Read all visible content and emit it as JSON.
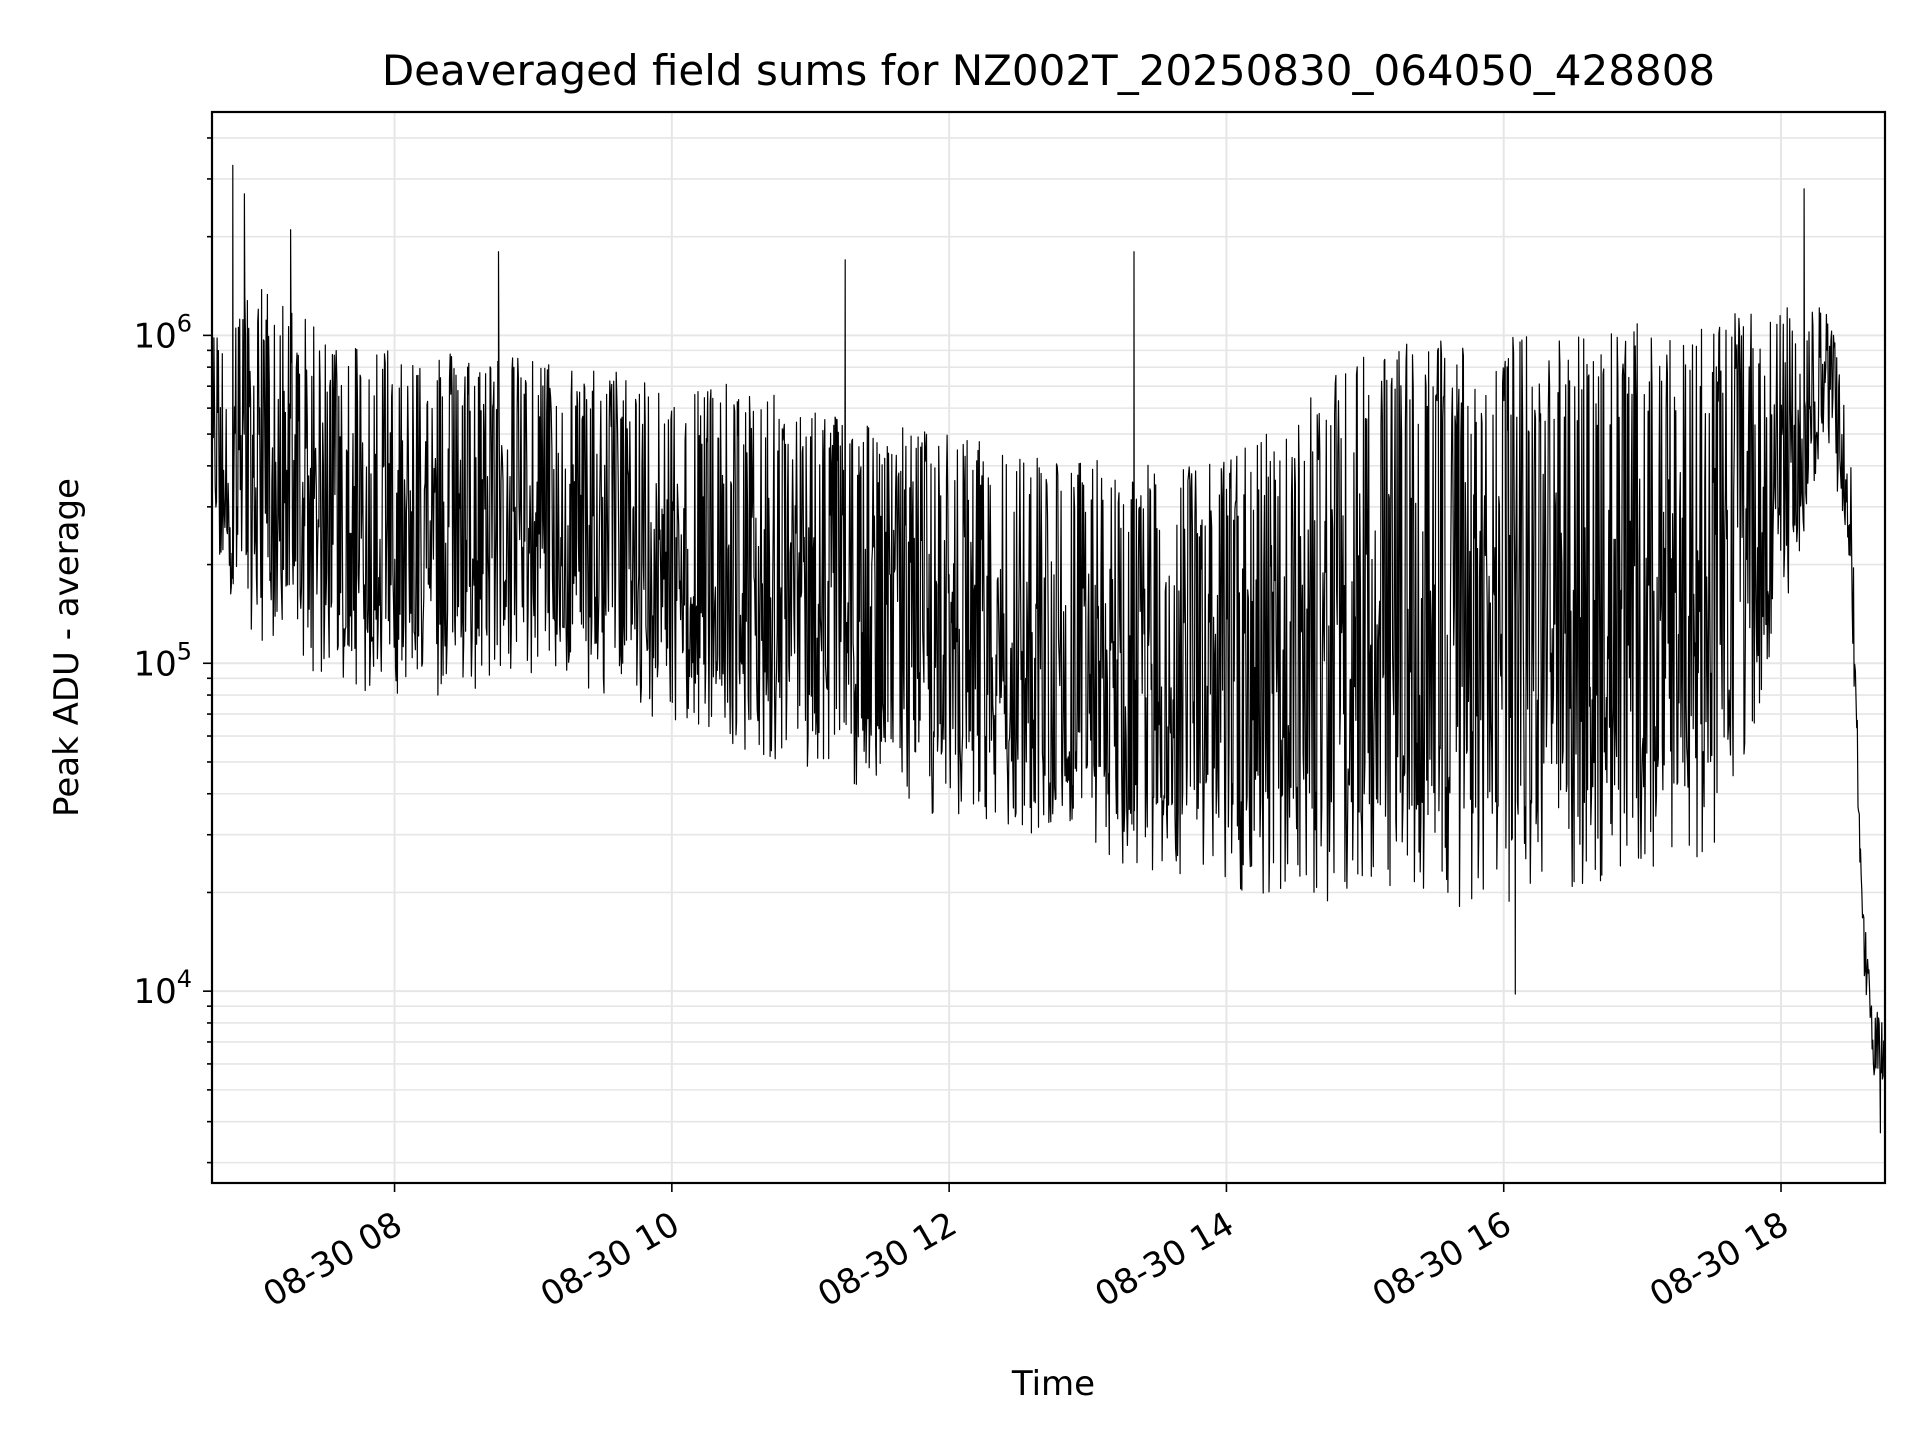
{
  "chart_data": {
    "type": "line",
    "title": "Deaveraged field sums for NZ002T_20250830_064050_428808",
    "xlabel": "Time",
    "ylabel": "Peak ADU - average",
    "y_scale": "log",
    "ylim": [
      2600,
      4800000
    ],
    "xlim": [
      "2025-08-30 06:41",
      "2025-08-30 18:45"
    ],
    "x_ticks": [
      {
        "value": "2025-08-30 08:00",
        "label": "08-30 08"
      },
      {
        "value": "2025-08-30 10:00",
        "label": "08-30 10"
      },
      {
        "value": "2025-08-30 12:00",
        "label": "08-30 12"
      },
      {
        "value": "2025-08-30 14:00",
        "label": "08-30 14"
      },
      {
        "value": "2025-08-30 16:00",
        "label": "08-30 16"
      },
      {
        "value": "2025-08-30 18:00",
        "label": "08-30 18"
      }
    ],
    "y_ticks": [
      {
        "value": 10000,
        "base": "10",
        "exp": "4"
      },
      {
        "value": 100000,
        "base": "10",
        "exp": "5"
      },
      {
        "value": 1000000,
        "base": "10",
        "exp": "6"
      }
    ],
    "grid": true,
    "line_color": "#000000",
    "grid_color": "#e6e6e6",
    "series": [
      {
        "envelope_note_free": true,
        "x": [
          "2025-08-30 06:41",
          "2025-08-30 07:00",
          "2025-08-30 07:30",
          "2025-08-30 08:00",
          "2025-08-30 08:30",
          "2025-08-30 09:00",
          "2025-08-30 09:30",
          "2025-08-30 10:00",
          "2025-08-30 10:30",
          "2025-08-30 11:00",
          "2025-08-30 11:30",
          "2025-08-30 12:00",
          "2025-08-30 12:30",
          "2025-08-30 13:00",
          "2025-08-30 13:30",
          "2025-08-30 14:00",
          "2025-08-30 14:30",
          "2025-08-30 15:00",
          "2025-08-30 15:30",
          "2025-08-30 16:00",
          "2025-08-30 16:30",
          "2025-08-30 17:00",
          "2025-08-30 17:30",
          "2025-08-30 18:00",
          "2025-08-30 18:20",
          "2025-08-30 18:30",
          "2025-08-30 18:35",
          "2025-08-30 18:40",
          "2025-08-30 18:45"
        ],
        "upper": [
          1000000,
          1500000,
          1000000,
          950000,
          900000,
          850000,
          800000,
          750000,
          700000,
          620000,
          550000,
          500000,
          450000,
          420000,
          400000,
          420000,
          600000,
          900000,
          1000000,
          1000000,
          1050000,
          1100000,
          1150000,
          1200000,
          1300000,
          500000,
          20000,
          9000,
          8000
        ],
        "lower": [
          200000,
          120000,
          90000,
          75000,
          80000,
          90000,
          80000,
          65000,
          55000,
          45000,
          38000,
          33000,
          29000,
          25000,
          22000,
          20000,
          19000,
          18500,
          18000,
          18000,
          20000,
          23000,
          25000,
          120000,
          500000,
          200000,
          12000,
          5500,
          5000
        ]
      }
    ],
    "spikes": [
      {
        "x": "2025-08-30 06:50",
        "y": 3300000
      },
      {
        "x": "2025-08-30 06:55",
        "y": 2700000
      },
      {
        "x": "2025-08-30 07:15",
        "y": 2100000
      },
      {
        "x": "2025-08-30 08:45",
        "y": 1800000
      },
      {
        "x": "2025-08-30 11:15",
        "y": 1700000
      },
      {
        "x": "2025-08-30 13:20",
        "y": 1800000
      },
      {
        "x": "2025-08-30 18:10",
        "y": 2800000
      },
      {
        "x": "2025-08-30 16:05",
        "y": 9800
      },
      {
        "x": "2025-08-30 18:43",
        "y": 3700
      }
    ]
  }
}
